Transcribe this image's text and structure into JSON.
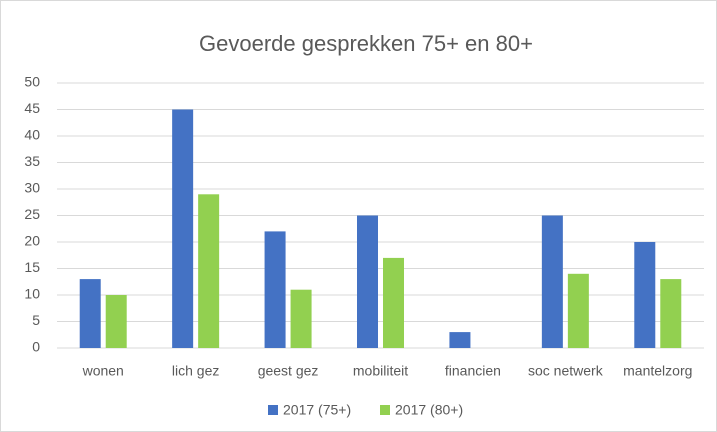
{
  "chart_data": {
    "type": "bar",
    "title": "Gevoerde gesprekken 75+ en 80+",
    "categories": [
      "wonen",
      "lich gez",
      "geest gez",
      "mobiliteit",
      "financien",
      "soc netwerk",
      "mantelzorg"
    ],
    "series": [
      {
        "name": "2017 (75+)",
        "color": "#4472c4",
        "values": [
          13,
          45,
          22,
          25,
          3,
          25,
          20
        ]
      },
      {
        "name": "2017 (80+)",
        "color": "#92d050",
        "values": [
          10,
          29,
          11,
          17,
          0,
          14,
          13
        ]
      }
    ],
    "ylim": [
      0,
      50
    ],
    "yticks": [
      0,
      5,
      10,
      15,
      20,
      25,
      30,
      35,
      40,
      45,
      50
    ],
    "grid": true,
    "legend": "bottom"
  }
}
